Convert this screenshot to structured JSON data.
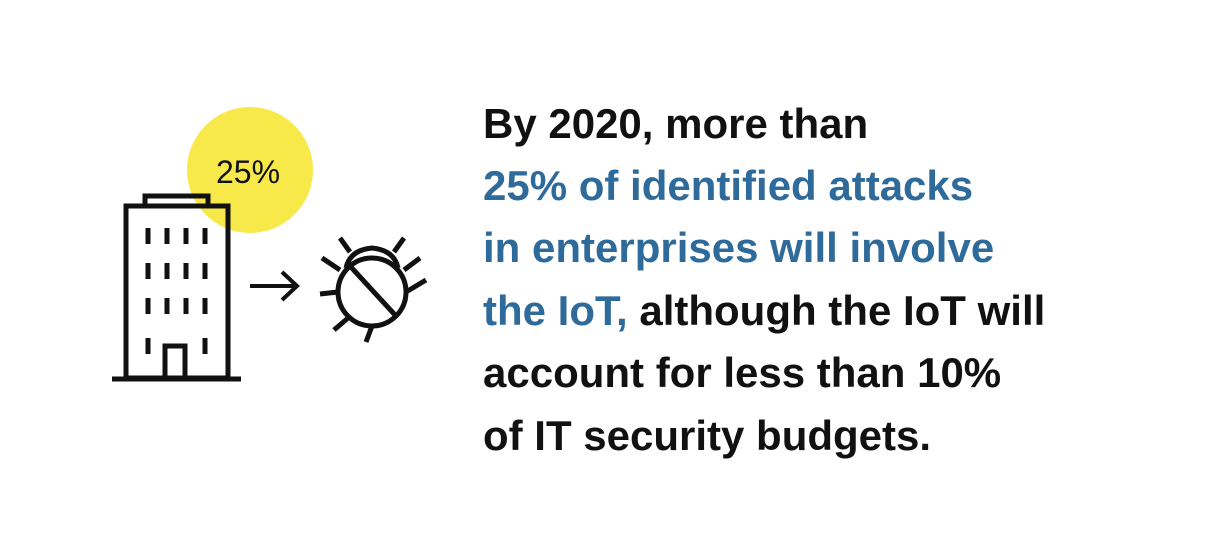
{
  "badge": "25%",
  "statement": {
    "lines": [
      [
        {
          "text": "By 2020, more than"
        }
      ],
      [
        {
          "text": "25% of identified attacks"
        }
      ],
      [
        {
          "text": "in enterprises will involve"
        }
      ],
      [
        {
          "text": "the IoT,"
        },
        {
          "text": " although the IoT will"
        }
      ],
      [
        {
          "text": "account for less than 10%"
        }
      ],
      [
        {
          "text": "of IT security budgets."
        }
      ]
    ]
  }
}
